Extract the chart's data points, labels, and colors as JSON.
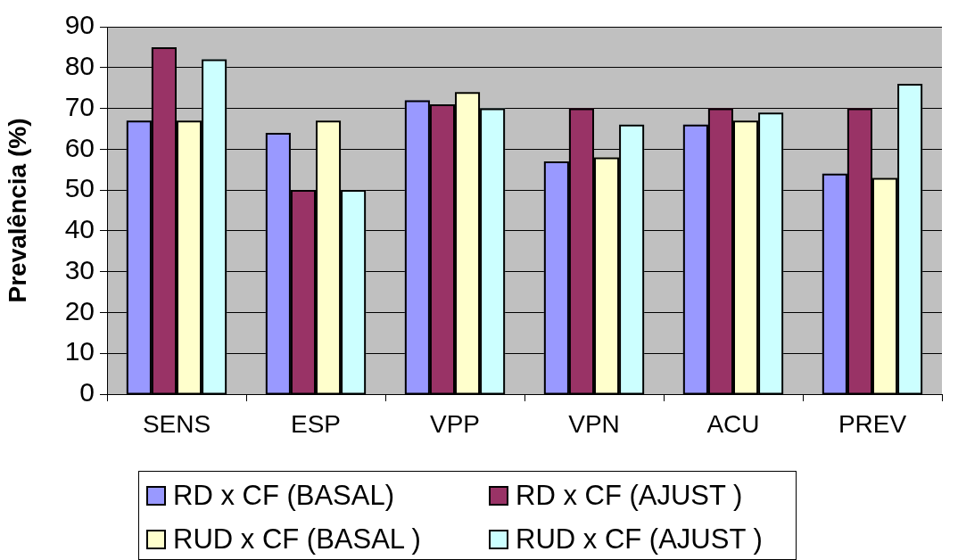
{
  "chart_data": {
    "type": "bar",
    "ylabel": "Prevalência (%)",
    "categories": [
      "SENS",
      "ESP",
      "VPP",
      "VPN",
      "ACU",
      "PREV"
    ],
    "series": [
      {
        "name": "RD x CF (BASAL)",
        "color": "#9999ff",
        "values": [
          67,
          64,
          72,
          57,
          66,
          54
        ]
      },
      {
        "name": "RD x CF (AJUST )",
        "color": "#993366",
        "values": [
          85,
          50,
          71,
          70,
          70,
          70
        ]
      },
      {
        "name": "RUD x CF (BASAL )",
        "color": "#ffffcc",
        "values": [
          67,
          67,
          74,
          58,
          67,
          53
        ]
      },
      {
        "name": "RUD x CF (AJUST )",
        "color": "#ccffff",
        "values": [
          82,
          50,
          70,
          66,
          69,
          76
        ]
      }
    ],
    "ylim": [
      0,
      90
    ],
    "yticks": [
      0,
      10,
      20,
      30,
      40,
      50,
      60,
      70,
      80,
      90
    ],
    "grid": "y",
    "legend": "bottom"
  }
}
